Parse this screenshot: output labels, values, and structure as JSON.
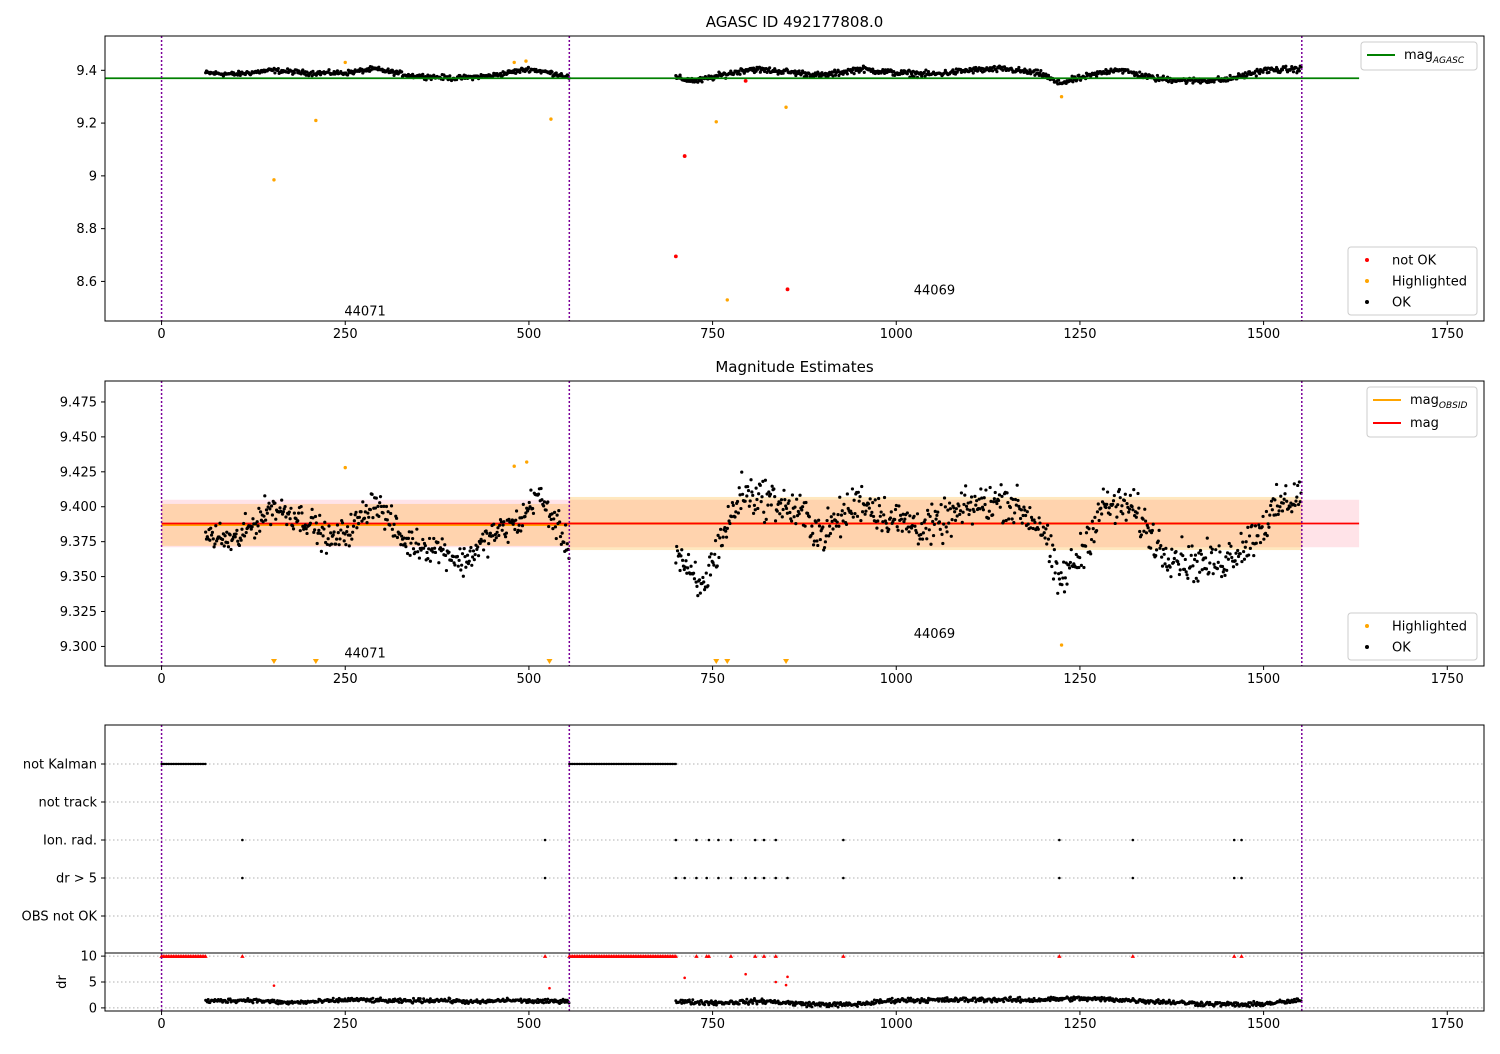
{
  "chart_data": [
    {
      "type": "scatter",
      "title": "AGASC ID 492177808.0",
      "xlabel": "",
      "ylabel": "",
      "xlim": [
        -77,
        1800
      ],
      "ylim": [
        8.45,
        9.53
      ],
      "xticks": [
        0,
        250,
        500,
        750,
        1000,
        1250,
        1500,
        1750
      ],
      "yticks": [
        8.6,
        8.8,
        9.0,
        9.2,
        9.4
      ],
      "grid": false,
      "obsid_boundaries": [
        0,
        555,
        1552
      ],
      "obsid_labels": [
        {
          "text": "44071",
          "x": 277,
          "y": 8.47
        },
        {
          "text": "44069",
          "x": 1052,
          "y": 8.55
        }
      ],
      "hlines": [
        {
          "name": "mag",
          "subscript": "AGASC",
          "y": 9.37,
          "xmin": -77,
          "xmax": 1630,
          "color": "#008000"
        }
      ],
      "legends": [
        {
          "placement": "top-right",
          "entries": [
            {
              "name": "mag",
              "subscript": "AGASC",
              "color": "#008000",
              "kind": "line"
            }
          ]
        },
        {
          "placement": "bottom-right",
          "entries": [
            {
              "name": "not OK",
              "color": "#ff0000",
              "kind": "point"
            },
            {
              "name": "Highlighted",
              "color": "#ffa500",
              "kind": "point"
            },
            {
              "name": "OK",
              "color": "#000000",
              "kind": "point"
            }
          ]
        }
      ],
      "series": [
        {
          "name": "OK",
          "color": "#000000",
          "segments": [
            {
              "x0": 60,
              "x1": 555,
              "knots_x": [
                60,
                100,
                150,
                200,
                250,
                290,
                340,
                400,
                450,
                500,
                540,
                555
              ],
              "knots_y": [
                9.39,
                9.385,
                9.4,
                9.39,
                9.39,
                9.405,
                9.38,
                9.37,
                9.38,
                9.405,
                9.385,
                9.375
              ],
              "noise": 0.008
            },
            {
              "x0": 700,
              "x1": 1552,
              "knots_x": [
                700,
                730,
                760,
                800,
                850,
                900,
                950,
                1000,
                1050,
                1100,
                1150,
                1200,
                1220,
                1250,
                1300,
                1350,
                1400,
                1450,
                1500,
                1552
              ],
              "knots_y": [
                9.37,
                9.36,
                9.38,
                9.405,
                9.395,
                9.38,
                9.405,
                9.39,
                9.385,
                9.4,
                9.405,
                9.385,
                9.35,
                9.37,
                9.405,
                9.37,
                9.36,
                9.365,
                9.4,
                9.405
              ],
              "noise": 0.01
            }
          ],
          "points": []
        },
        {
          "name": "Highlighted",
          "color": "#ffa500",
          "points": [
            {
              "x": 153,
              "y": 8.985
            },
            {
              "x": 210,
              "y": 9.21
            },
            {
              "x": 250,
              "y": 9.43
            },
            {
              "x": 480,
              "y": 9.43
            },
            {
              "x": 496,
              "y": 9.435
            },
            {
              "x": 530,
              "y": 9.215
            },
            {
              "x": 755,
              "y": 9.205
            },
            {
              "x": 770,
              "y": 8.53
            },
            {
              "x": 850,
              "y": 9.26
            },
            {
              "x": 1225,
              "y": 9.3
            }
          ]
        },
        {
          "name": "not OK",
          "color": "#ff0000",
          "points": [
            {
              "x": 700,
              "y": 8.695
            },
            {
              "x": 712,
              "y": 9.075
            },
            {
              "x": 795,
              "y": 9.36
            },
            {
              "x": 852,
              "y": 8.57
            }
          ]
        }
      ]
    },
    {
      "type": "scatter",
      "title": "Magnitude Estimates",
      "xlabel": "",
      "ylabel": "",
      "xlim": [
        -77,
        1800
      ],
      "ylim": [
        9.286,
        9.49
      ],
      "xticks": [
        0,
        250,
        500,
        750,
        1000,
        1250,
        1500,
        1750
      ],
      "yticks": [
        9.3,
        9.325,
        9.35,
        9.375,
        9.4,
        9.425,
        9.45,
        9.475
      ],
      "ytick_labels": [
        "9.300",
        "9.325",
        "9.350",
        "9.375",
        "9.400",
        "9.425",
        "9.450",
        "9.475"
      ],
      "grid": false,
      "obsid_boundaries": [
        0,
        555,
        1552
      ],
      "obsid_labels": [
        {
          "text": "44071",
          "x": 277,
          "y": 9.292
        },
        {
          "text": "44069",
          "x": 1052,
          "y": 9.306
        }
      ],
      "bands": [
        {
          "label": "mag",
          "ymin": 9.371,
          "ymax": 9.405,
          "xmin": 0,
          "xmax": 1630,
          "color": "#ffc0cb"
        },
        {
          "label": "mag_OBSID 44071",
          "ymin": 9.372,
          "ymax": 9.402,
          "xmin": 0,
          "xmax": 555,
          "color": "#ffa500"
        },
        {
          "label": "mag_OBSID 44069",
          "ymin": 9.369,
          "ymax": 9.407,
          "xmin": 555,
          "xmax": 1552,
          "color": "#ffa500"
        }
      ],
      "hlines": [
        {
          "name": "mag",
          "subscript": "OBSID",
          "y": 9.387,
          "xmin": 0,
          "xmax": 555,
          "color": "#ffa500"
        },
        {
          "name": "mag",
          "subscript": "OBSID",
          "y": 9.388,
          "xmin": 555,
          "xmax": 1552,
          "color": "#ffa500"
        },
        {
          "name": "mag",
          "subscript": "",
          "y": 9.388,
          "xmin": 0,
          "xmax": 1630,
          "color": "#ff0000"
        }
      ],
      "legends": [
        {
          "placement": "top-right",
          "entries": [
            {
              "name": "mag",
              "subscript": "OBSID",
              "color": "#ffa500",
              "kind": "line"
            },
            {
              "name": "mag",
              "subscript": "",
              "color": "#ff0000",
              "kind": "line"
            }
          ]
        },
        {
          "placement": "bottom-right",
          "entries": [
            {
              "name": "Highlighted",
              "color": "#ffa500",
              "kind": "point"
            },
            {
              "name": "OK",
              "color": "#000000",
              "kind": "point"
            }
          ]
        }
      ],
      "series": [
        {
          "name": "OK",
          "color": "#000000",
          "segments": [
            {
              "x0": 60,
              "x1": 555,
              "knots_x": [
                60,
                100,
                150,
                200,
                230,
                260,
                290,
                330,
                380,
                410,
                450,
                490,
                510,
                540,
                555
              ],
              "knots_y": [
                9.38,
                9.375,
                9.4,
                9.39,
                9.375,
                9.385,
                9.405,
                9.375,
                9.37,
                9.36,
                9.38,
                9.39,
                9.41,
                9.385,
                9.37
              ],
              "noise": 0.009
            },
            {
              "x0": 700,
              "x1": 1552,
              "knots_x": [
                700,
                720,
                735,
                760,
                790,
                830,
                870,
                900,
                950,
                1000,
                1050,
                1100,
                1150,
                1200,
                1220,
                1250,
                1280,
                1320,
                1360,
                1400,
                1440,
                1480,
                1520,
                1552
              ],
              "knots_y": [
                9.37,
                9.35,
                9.34,
                9.375,
                9.41,
                9.405,
                9.395,
                9.38,
                9.405,
                9.39,
                9.385,
                9.4,
                9.405,
                9.385,
                9.345,
                9.365,
                9.4,
                9.4,
                9.37,
                9.36,
                9.36,
                9.375,
                9.4,
                9.41
              ],
              "noise": 0.012
            }
          ],
          "points": []
        },
        {
          "name": "Highlighted",
          "color": "#ffa500",
          "points": [
            {
              "x": 250,
              "y": 9.428
            },
            {
              "x": 480,
              "y": 9.429
            },
            {
              "x": 497,
              "y": 9.432
            },
            {
              "x": 1225,
              "y": 9.301
            }
          ],
          "offscale_markers": [
            153,
            210,
            528,
            755,
            770,
            850
          ]
        }
      ]
    },
    {
      "type": "scatter",
      "title": "",
      "xlabel": "",
      "ylabel": "",
      "xlim": [
        -77,
        1800
      ],
      "xticks": [
        0,
        250,
        500,
        750,
        1000,
        1250,
        1500,
        1750
      ],
      "grid": true,
      "obsid_boundaries": [
        0,
        555,
        1552
      ],
      "categories": [
        "not Kalman",
        "not track",
        "Ion. rad.",
        "dr > 5",
        "OBS not OK"
      ],
      "flag_points": {
        "not Kalman": {
          "ranges": [
            [
              0,
              60
            ],
            [
              555,
              700
            ]
          ],
          "points": []
        },
        "not track": {
          "ranges": [],
          "points": []
        },
        "Ion. rad.": {
          "ranges": [],
          "points": [
            110,
            522,
            700,
            728,
            745,
            758,
            775,
            808,
            820,
            836,
            928,
            1222,
            1322,
            1460,
            1470
          ]
        },
        "dr > 5": {
          "ranges": [],
          "points": [
            110,
            522,
            700,
            712,
            728,
            742,
            758,
            775,
            795,
            808,
            820,
            836,
            852,
            928,
            1222,
            1322,
            1460,
            1470
          ]
        },
        "OBS not OK": {
          "ranges": [],
          "points": []
        }
      }
    },
    {
      "type": "scatter",
      "title": "",
      "xlabel": "",
      "ylabel": "dr",
      "xlim": [
        -77,
        1800
      ],
      "ylim": [
        -0.6,
        10.6
      ],
      "xticks": [
        0,
        250,
        500,
        750,
        1000,
        1250,
        1500,
        1750
      ],
      "yticks": [
        0,
        5,
        10
      ],
      "grid": true,
      "obsid_boundaries": [
        0,
        555,
        1552
      ],
      "series": [
        {
          "name": "dr",
          "color": "#000000",
          "segments": [
            {
              "x0": 60,
              "x1": 555,
              "knots_x": [
                60,
                120,
                170,
                210,
                260,
                320,
                380,
                430,
                470,
                520,
                555
              ],
              "knots_y": [
                1.3,
                1.5,
                1.0,
                1.2,
                1.6,
                1.3,
                1.5,
                1.1,
                1.5,
                1.2,
                1.4
              ],
              "noise": 0.35
            },
            {
              "x0": 700,
              "x1": 1552,
              "knots_x": [
                700,
                760,
                820,
                880,
                940,
                1000,
                1060,
                1120,
                1180,
                1240,
                1300,
                1360,
                1420,
                1480,
                1552
              ],
              "knots_y": [
                1.2,
                1.0,
                1.3,
                0.7,
                0.6,
                1.5,
                1.5,
                1.6,
                1.5,
                1.8,
                1.6,
                1.2,
                0.8,
                0.6,
                1.4
              ],
              "noise": 0.4
            }
          ],
          "points": []
        },
        {
          "name": "dr > 5",
          "color": "#ff0000",
          "points": [
            {
              "x": 153,
              "y": 4.3
            },
            {
              "x": 528,
              "y": 3.8
            },
            {
              "x": 712,
              "y": 5.8
            },
            {
              "x": 795,
              "y": 6.5
            },
            {
              "x": 836,
              "y": 5.0
            },
            {
              "x": 852,
              "y": 6.0
            },
            {
              "x": 850,
              "y": 4.4
            }
          ],
          "capped_at": 10,
          "capped_ranges": [
            [
              0,
              60
            ],
            [
              555,
              700
            ]
          ],
          "capped_points": [
            110,
            522,
            728,
            742,
            745,
            775,
            808,
            820,
            836,
            928,
            1222,
            1322,
            1460,
            1470
          ]
        }
      ]
    }
  ]
}
